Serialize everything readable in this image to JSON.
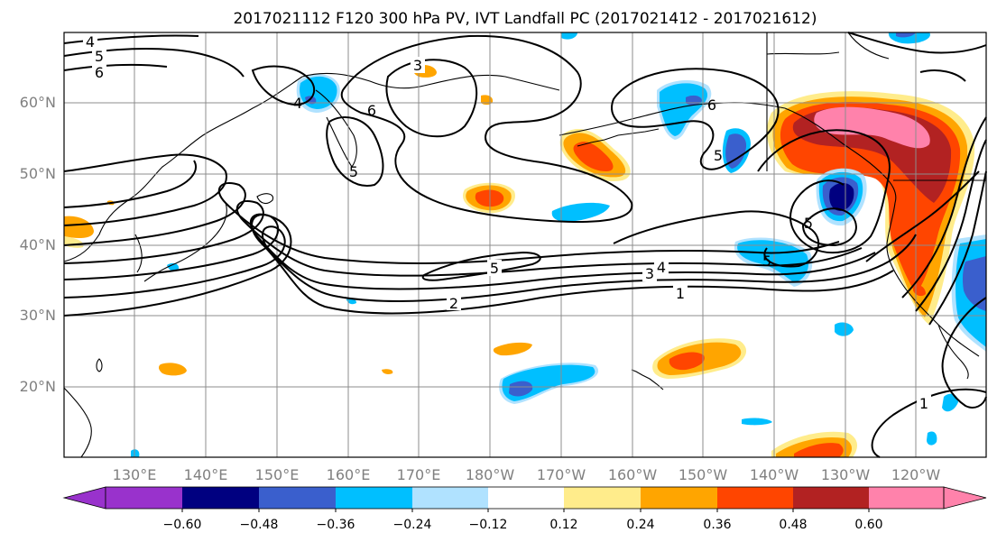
{
  "title": "2017021112 F120 300 hPa PV, IVT Landfall PC (2017021412 - 2017021612)",
  "lat_labels": [
    "60°N",
    "50°N",
    "40°N",
    "30°N",
    "20°N"
  ],
  "lon_labels": [
    "130°E",
    "140°E",
    "150°E",
    "160°E",
    "170°E",
    "180°W",
    "170°W",
    "160°W",
    "150°W",
    "140°W",
    "130°W",
    "120°W"
  ],
  "contour_labels": [
    "4",
    "5",
    "6",
    "3",
    "4",
    "5",
    "6",
    "5",
    "6",
    "5",
    "5",
    "4",
    "3",
    "2",
    "1",
    "1",
    "5"
  ],
  "colorbar": {
    "tick_labels": [
      "−0.60",
      "−0.48",
      "−0.36",
      "−0.24",
      "−0.12",
      "0.12",
      "0.24",
      "0.36",
      "0.48",
      "0.60"
    ],
    "colors": [
      "#9932cc",
      "#000080",
      "#3a5fcd",
      "#00bfff",
      "#b0e2ff",
      "#ffffff",
      "#ffec8b",
      "#ffa500",
      "#ff4500",
      "#b22222",
      "#ff82ab"
    ]
  },
  "colors": {
    "neg_strong": "#000080",
    "neg_mid": "#3a5fcd",
    "neg_light": "#00bfff",
    "neg_pale": "#b0e2ff",
    "pos_pale": "#ffec8b",
    "pos_light": "#ffa500",
    "pos_mid": "#ff4500",
    "pos_strong": "#b22222",
    "pos_max": "#ff82ab"
  }
}
